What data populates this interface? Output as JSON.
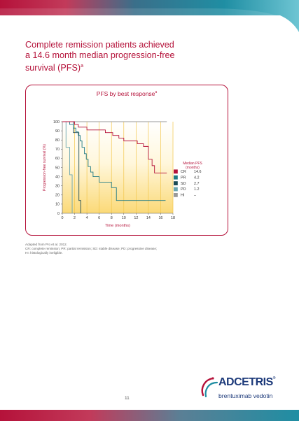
{
  "document": {
    "title_lines": [
      "Complete remission patients achieved",
      "a 14.6 month median progression-free",
      "survival (PFS)"
    ],
    "title_superscript": "a",
    "chart_heading": "PFS by best response",
    "chart_heading_superscript": "a",
    "footnotes": [
      "Adapted from Pro et al. 2012.",
      "CR: complete remission; PR: partial remission; SD: stable disease; PD: progressive disease;",
      "HI: histologically ineligible."
    ],
    "page_number": "11",
    "logo": {
      "wordmark": "ADCETRIS",
      "registered": "®",
      "subtitle": "brentuximab vedotin"
    }
  },
  "colors": {
    "accent": "#b5123a",
    "teal": "#1f7a85",
    "dark_teal": "#1c4b55",
    "brand_blue": "#1d3a7a",
    "grid_gold": "#f2c64c"
  },
  "chart_data": {
    "type": "line",
    "title": "PFS by best response",
    "xlabel": "Time (months)",
    "ylabel": "Progression-free survival (%)",
    "xlim": [
      0,
      18
    ],
    "ylim": [
      0,
      100
    ],
    "xticks": [
      0,
      2,
      4,
      6,
      8,
      10,
      12,
      14,
      16,
      18
    ],
    "yticks": [
      0,
      10,
      20,
      30,
      40,
      50,
      60,
      70,
      80,
      90,
      100
    ],
    "legend_header": [
      "Median PFS",
      "(months)"
    ],
    "legend_position": "right",
    "series": [
      {
        "name": "CR",
        "median": "14.6",
        "color": "#b5123a",
        "points": [
          [
            0,
            100
          ],
          [
            2.0,
            100
          ],
          [
            2.0,
            97
          ],
          [
            2.6,
            97
          ],
          [
            2.6,
            94
          ],
          [
            4.0,
            94
          ],
          [
            4.0,
            91
          ],
          [
            7.0,
            91
          ],
          [
            7.0,
            88
          ],
          [
            8.2,
            88
          ],
          [
            8.2,
            85
          ],
          [
            9.2,
            85
          ],
          [
            9.2,
            82
          ],
          [
            10.0,
            82
          ],
          [
            10.0,
            79
          ],
          [
            12.2,
            79
          ],
          [
            12.2,
            76
          ],
          [
            13.2,
            76
          ],
          [
            13.2,
            73
          ],
          [
            14.0,
            73
          ],
          [
            14.0,
            59
          ],
          [
            14.6,
            59
          ],
          [
            14.6,
            52
          ],
          [
            15.0,
            52
          ],
          [
            15.0,
            44
          ],
          [
            17.0,
            44
          ]
        ]
      },
      {
        "name": "PR",
        "median": "4.2",
        "color": "#1f7a85",
        "points": [
          [
            0,
            100
          ],
          [
            1.2,
            100
          ],
          [
            1.2,
            97
          ],
          [
            1.8,
            97
          ],
          [
            1.8,
            93
          ],
          [
            2.2,
            93
          ],
          [
            2.2,
            89
          ],
          [
            2.6,
            89
          ],
          [
            2.6,
            85
          ],
          [
            2.9,
            85
          ],
          [
            2.9,
            79
          ],
          [
            3.2,
            79
          ],
          [
            3.2,
            72
          ],
          [
            3.6,
            72
          ],
          [
            3.6,
            65
          ],
          [
            3.9,
            65
          ],
          [
            3.9,
            59
          ],
          [
            4.2,
            59
          ],
          [
            4.2,
            51
          ],
          [
            4.6,
            51
          ],
          [
            4.6,
            45
          ],
          [
            5.0,
            45
          ],
          [
            5.0,
            40
          ],
          [
            6.0,
            40
          ],
          [
            6.0,
            34
          ],
          [
            8.0,
            34
          ],
          [
            8.0,
            28
          ],
          [
            8.8,
            28
          ],
          [
            8.8,
            14
          ],
          [
            16.8,
            14
          ]
        ]
      },
      {
        "name": "SD",
        "median": "2.7",
        "color": "#1c4b55",
        "points": [
          [
            0,
            100
          ],
          [
            1.8,
            100
          ],
          [
            1.8,
            88
          ],
          [
            2.7,
            88
          ],
          [
            2.7,
            14
          ],
          [
            3.0,
            14
          ],
          [
            3.0,
            0
          ]
        ]
      },
      {
        "name": "PD",
        "median": "1.2",
        "color": "#6aa6b0",
        "points": [
          [
            0,
            100
          ],
          [
            0.6,
            100
          ],
          [
            0.6,
            72
          ],
          [
            1.2,
            72
          ],
          [
            1.2,
            42
          ],
          [
            1.6,
            42
          ],
          [
            1.6,
            0
          ]
        ]
      },
      {
        "name": "HI",
        "median": "–",
        "color": "#9a9a9a",
        "points": [
          [
            0,
            100
          ],
          [
            17,
            100
          ]
        ]
      }
    ]
  }
}
